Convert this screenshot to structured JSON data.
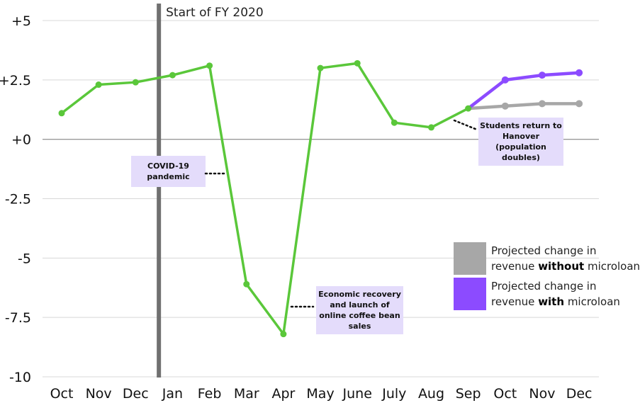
{
  "chart_data": {
    "type": "line",
    "categories": [
      "Oct",
      "Nov",
      "Dec",
      "Jan",
      "Feb",
      "Mar",
      "Apr",
      "May",
      "June",
      "July",
      "Aug",
      "Sep",
      "Oct",
      "Nov",
      "Dec"
    ],
    "y_ticks": [
      "+5",
      "+2.5",
      "+0",
      "-2.5",
      "-5",
      "-7.5",
      "-10"
    ],
    "ylim": [
      -10,
      5
    ],
    "grid": true,
    "series": [
      {
        "key": "actual",
        "color": "#5ac73a",
        "x": [
          0,
          1,
          2,
          3,
          4,
          5,
          6,
          7,
          8,
          9,
          10,
          11
        ],
        "values": [
          1.1,
          2.3,
          2.4,
          2.7,
          3.1,
          -6.1,
          -8.2,
          3.0,
          3.2,
          0.7,
          0.5,
          1.3
        ]
      },
      {
        "key": "without",
        "name": "Projected change in revenue without microloan",
        "color": "#a7a7a7",
        "x": [
          11,
          12,
          13,
          14
        ],
        "values": [
          1.3,
          1.4,
          1.5,
          1.5
        ]
      },
      {
        "key": "with",
        "name": "Projected change in revenue with microloan",
        "color": "#8c4bff",
        "x": [
          11,
          12,
          13,
          14
        ],
        "values": [
          1.3,
          2.5,
          2.7,
          2.8
        ]
      }
    ],
    "vline": {
      "x": 2.63,
      "label": "Start of FY 2020",
      "color": "#707070"
    },
    "annotations": [
      {
        "key": "covid",
        "lines": [
          "COVID-19",
          "pandemic"
        ]
      },
      {
        "key": "recovery",
        "lines": [
          "Economic recovery",
          "and launch of",
          "online coffee bean",
          "sales"
        ]
      },
      {
        "key": "students",
        "lines": [
          "Students return to",
          "Hanover",
          "(population",
          "doubles)"
        ]
      }
    ],
    "legend": {
      "placement": "bottom-right",
      "items": [
        {
          "color": "#a7a7a7",
          "pre": "Projected change in",
          "line2_pre": "revenue ",
          "bold": "without",
          "line2_post": " microloan"
        },
        {
          "color": "#8c4bff",
          "pre": "Projected change in",
          "line2_pre": "revenue ",
          "bold": "with",
          "line2_post": " microloan"
        }
      ]
    },
    "annotation_bg": "#e4dcfb"
  }
}
